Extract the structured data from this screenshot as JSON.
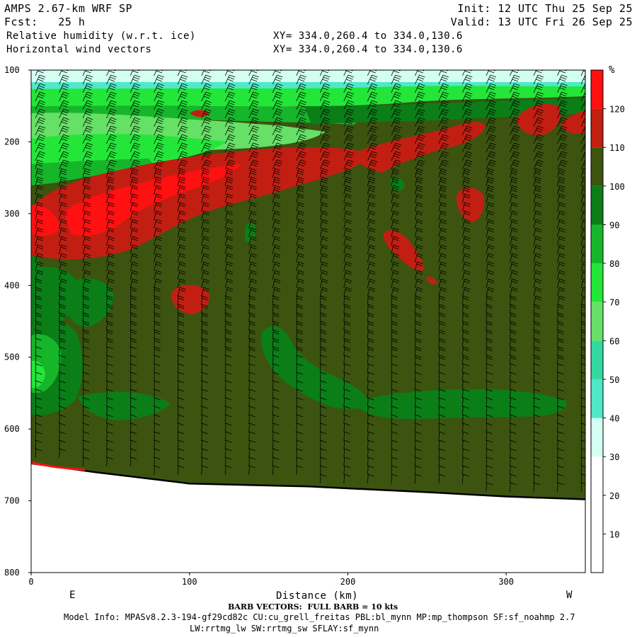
{
  "header": {
    "model": "AMPS 2.67-km WRF SP",
    "fcst": "Fcst:   25 h",
    "init": "Init: 12 UTC Thu 25 Sep 25",
    "valid": "Valid: 13 UTC Fri 26 Sep 25",
    "field1": "Relative humidity (w.r.t. ice)",
    "field2": "Horizontal wind vectors",
    "xy1": "XY= 334.0,260.4 to 334.0,130.6",
    "xy2": "XY= 334.0,260.4 to 334.0,130.6"
  },
  "footer": {
    "barb_note": "BARB VECTORS:  FULL BARB = 10 kts",
    "model_info": "Model Info: MPASv8.2.3-194-gf29cd82c CU:cu_grell_freitas PBL:bl_mynn MP:mp_thompson SF:sf_noahmp 2.7",
    "physics": "LW:rrtmg_lw SW:rrtmg_sw SFLAY:sf_mynn"
  },
  "chart_data": {
    "type": "heatmap",
    "title": "Relative humidity (w.r.t. ice)",
    "xlabel": "Distance (km)",
    "ylabel": "",
    "xlim": [
      0,
      350
    ],
    "ylim": [
      800,
      100
    ],
    "x_ticks": [
      0,
      100,
      200,
      300
    ],
    "y_ticks": [
      100,
      200,
      300,
      400,
      500,
      600,
      700,
      800
    ],
    "x_ends": {
      "left": "E",
      "right": "W"
    },
    "colorbar": {
      "unit": "%",
      "levels": [
        10,
        20,
        30,
        40,
        50,
        60,
        70,
        80,
        90,
        100,
        110,
        120
      ],
      "bins": [
        {
          "from": 0,
          "to": 10,
          "color": "#ffffff"
        },
        {
          "from": 10,
          "to": 20,
          "color": "#ffffff"
        },
        {
          "from": 20,
          "to": 30,
          "color": "#ffffff"
        },
        {
          "from": 30,
          "to": 40,
          "color": "#d2fff2"
        },
        {
          "from": 40,
          "to": 50,
          "color": "#4fe8c8"
        },
        {
          "from": 50,
          "to": 60,
          "color": "#33d9a0"
        },
        {
          "from": 60,
          "to": 70,
          "color": "#66e066"
        },
        {
          "from": 70,
          "to": 80,
          "color": "#23e639"
        },
        {
          "from": 80,
          "to": 90,
          "color": "#16b62a"
        },
        {
          "from": 90,
          "to": 100,
          "color": "#0b7e18"
        },
        {
          "from": 100,
          "to": 110,
          "color": "#3c5410"
        },
        {
          "from": 110,
          "to": 120,
          "color": "#c21f12"
        },
        {
          "from": 120,
          "to": 130,
          "color": "#ff1111"
        }
      ]
    },
    "terrain_pressure": [
      {
        "x": 0,
        "p": 648
      },
      {
        "x": 40,
        "p": 660
      },
      {
        "x": 100,
        "p": 676
      },
      {
        "x": 175,
        "p": 680
      },
      {
        "x": 250,
        "p": 688
      },
      {
        "x": 300,
        "p": 694
      },
      {
        "x": 350,
        "p": 698
      }
    ]
  },
  "colors": {
    "background_rh": "#3c5410",
    "barb": "#000000",
    "terrain": "#000000",
    "terrain_edge_red": "#ff1111"
  }
}
